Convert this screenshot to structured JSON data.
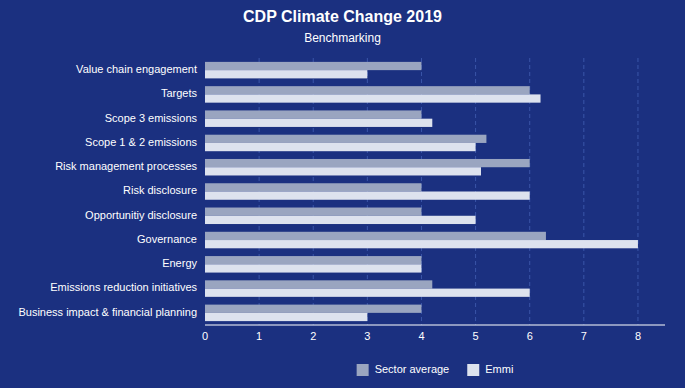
{
  "chart_data": {
    "type": "bar",
    "orientation": "horizontal",
    "title": "CDP Climate Change 2019",
    "subtitle": "Benchmarking",
    "categories": [
      "Value chain engagement",
      "Targets",
      "Scope 3 emissions",
      "Scope 1 & 2 emissions",
      "Risk management processes",
      "Risk disclosure",
      "Opportunitiy disclosure",
      "Governance",
      "Energy",
      "Emissions reduction initiatives",
      "Business impact & financial planning"
    ],
    "series": [
      {
        "name": "Sector average",
        "color": "#9aa5c0",
        "values": [
          4.0,
          6.0,
          4.0,
          5.2,
          6.0,
          4.0,
          4.0,
          6.3,
          4.0,
          4.2,
          4.0
        ]
      },
      {
        "name": "Emmi",
        "color": "#dde2ee",
        "values": [
          3.0,
          6.2,
          4.2,
          5.0,
          5.1,
          6.0,
          5.0,
          8.0,
          4.0,
          6.0,
          3.0
        ]
      }
    ],
    "xlim": [
      0,
      8.5
    ],
    "xticks": [
      0,
      1,
      2,
      3,
      4,
      5,
      6,
      7,
      8
    ],
    "grid": true,
    "legend": "bottom"
  }
}
